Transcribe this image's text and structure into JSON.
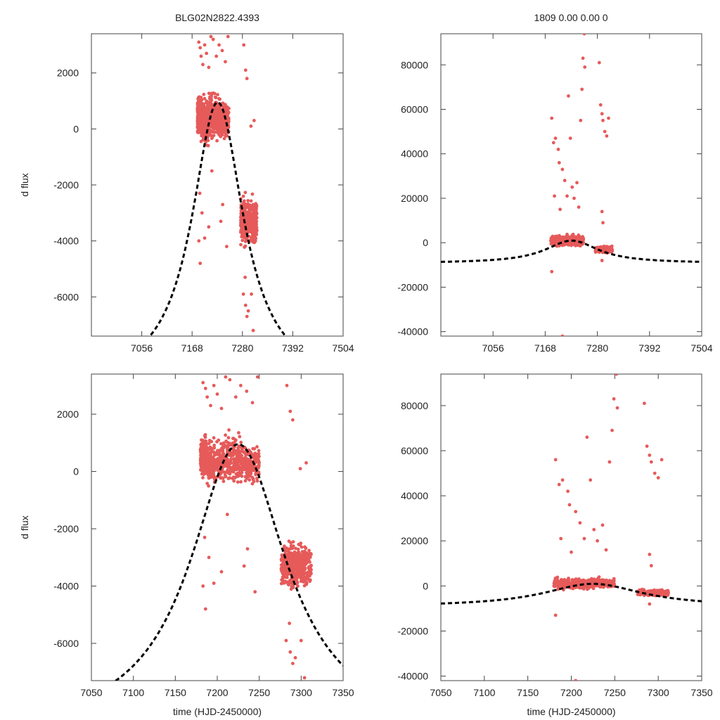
{
  "figure": {
    "title_left": "BLG02N2822.4393",
    "title_right": "1809  0.00  0.00  0",
    "colors": {
      "points": "#e65a5a",
      "model": "#000000",
      "frame": "#444444"
    }
  },
  "chart_data": [
    {
      "id": "top-left",
      "type": "scatter",
      "title": "BLG02N2822.4393",
      "xlabel": "",
      "ylabel": "d flux",
      "xlim": [
        6944,
        7504
      ],
      "ylim": [
        -7400,
        3400
      ],
      "xticks": [
        7056,
        7168,
        7280,
        7392,
        7504
      ],
      "yticks": [
        -6000,
        -4000,
        -2000,
        0,
        2000
      ],
      "series": [
        {
          "name": "observations",
          "clusters": [
            {
              "x": [
                7180,
                7188
              ],
              "y_center": 500,
              "y_spread": 700,
              "count": 260
            },
            {
              "x": [
                7188,
                7205
              ],
              "y_center": 300,
              "y_spread": 900,
              "count": 220
            },
            {
              "x": [
                7205,
                7230
              ],
              "y_center": 400,
              "y_spread": 900,
              "count": 240
            },
            {
              "x": [
                7230,
                7250
              ],
              "y_center": 300,
              "y_spread": 700,
              "count": 160
            },
            {
              "x": [
                7276,
                7312
              ],
              "y_center": -3300,
              "y_spread": 900,
              "count": 420
            }
          ],
          "outliers": [
            [
              7183,
              3100
            ],
            [
              7186,
              2900
            ],
            [
              7188,
              2600
            ],
            [
              7192,
              2300
            ],
            [
              7196,
              3000
            ],
            [
              7200,
              2700
            ],
            [
              7205,
              2200
            ],
            [
              7210,
              3300
            ],
            [
              7215,
              3200
            ],
            [
              7222,
              2600
            ],
            [
              7228,
              3000
            ],
            [
              7235,
              2800
            ],
            [
              7242,
              2400
            ],
            [
              7248,
              3300
            ],
            [
              7185,
              -2300
            ],
            [
              7190,
              -3000
            ],
            [
              7183,
              -4000
            ],
            [
              7186,
              -4800
            ],
            [
              7196,
              -3900
            ],
            [
              7205,
              -3500
            ],
            [
              7212,
              -1500
            ],
            [
              7232,
              -3300
            ],
            [
              7236,
              -2700
            ],
            [
              7245,
              -4200
            ],
            [
              7283,
              3000
            ],
            [
              7287,
              2100
            ],
            [
              7290,
              1800
            ],
            [
              7299,
              100
            ],
            [
              7306,
              300
            ],
            [
              7282,
              -5900
            ],
            [
              7287,
              -6300
            ],
            [
              7290,
              -6700
            ],
            [
              7293,
              -6500
            ],
            [
              7286,
              -5300
            ],
            [
              7300,
              -5900
            ],
            [
              7304,
              -7200
            ]
          ]
        },
        {
          "name": "model",
          "style": "dashed",
          "t0": 7225,
          "peak": 950,
          "baseline": -9200,
          "half_width": 70
        }
      ]
    },
    {
      "id": "top-right",
      "type": "scatter",
      "title": "1809  0.00  0.00  0",
      "xlabel": "",
      "ylabel": "",
      "xlim": [
        6944,
        7504
      ],
      "ylim": [
        -42000,
        94000
      ],
      "xticks": [
        7056,
        7168,
        7280,
        7392,
        7504
      ],
      "yticks": [
        -40000,
        -20000,
        0,
        20000,
        40000,
        60000,
        80000
      ],
      "series": [
        {
          "name": "observations",
          "clusters": [
            {
              "x": [
                7180,
                7250
              ],
              "y_center": 1000,
              "y_spread": 2500,
              "count": 420
            },
            {
              "x": [
                7276,
                7312
              ],
              "y_center": -3000,
              "y_spread": 1600,
              "count": 260
            }
          ],
          "outliers": [
            [
              7182,
              56000
            ],
            [
              7186,
              45000
            ],
            [
              7190,
              47000
            ],
            [
              7196,
              42000
            ],
            [
              7198,
              36000
            ],
            [
              7205,
              33000
            ],
            [
              7210,
              28000
            ],
            [
              7215,
              21000
            ],
            [
              7218,
              66000
            ],
            [
              7222,
              47000
            ],
            [
              7226,
              25000
            ],
            [
              7230,
              20000
            ],
            [
              7236,
              27000
            ],
            [
              7244,
              55000
            ],
            [
              7247,
              69000
            ],
            [
              7249,
              83000
            ],
            [
              7252,
              94000
            ],
            [
              7253,
              79000
            ],
            [
              7284,
              81000
            ],
            [
              7287,
              62000
            ],
            [
              7290,
              58000
            ],
            [
              7292,
              55000
            ],
            [
              7296,
              50000
            ],
            [
              7300,
              48000
            ],
            [
              7304,
              56000
            ],
            [
              7188,
              21000
            ],
            [
              7200,
              15000
            ],
            [
              7240,
              16000
            ],
            [
              7290,
              14000
            ],
            [
              7292,
              9000
            ],
            [
              7182,
              -13000
            ],
            [
              7205,
              -42000
            ],
            [
              7290,
              -8000
            ]
          ]
        },
        {
          "name": "model",
          "style": "dashed",
          "t0": 7225,
          "peak": 950,
          "baseline": -9200,
          "half_width": 70
        }
      ]
    },
    {
      "id": "bottom-left",
      "type": "scatter",
      "title": "",
      "xlabel": "time (HJD-2450000)",
      "ylabel": "d flux",
      "xlim": [
        7050,
        7350
      ],
      "ylim": [
        -7300,
        3400
      ],
      "xticks": [
        7050,
        7100,
        7150,
        7200,
        7250,
        7300,
        7350
      ],
      "yticks": [
        -6000,
        -4000,
        -2000,
        0,
        2000
      ],
      "series": [
        {
          "name": "observations",
          "clusters": [
            {
              "x": [
                7180,
                7188
              ],
              "y_center": 500,
              "y_spread": 700,
              "count": 260
            },
            {
              "x": [
                7188,
                7205
              ],
              "y_center": 300,
              "y_spread": 900,
              "count": 220
            },
            {
              "x": [
                7205,
                7230
              ],
              "y_center": 400,
              "y_spread": 900,
              "count": 240
            },
            {
              "x": [
                7230,
                7250
              ],
              "y_center": 300,
              "y_spread": 700,
              "count": 160
            },
            {
              "x": [
                7276,
                7312
              ],
              "y_center": -3300,
              "y_spread": 900,
              "count": 420
            }
          ],
          "outliers": [
            [
              7183,
              3100
            ],
            [
              7186,
              2900
            ],
            [
              7188,
              2600
            ],
            [
              7192,
              2300
            ],
            [
              7196,
              3000
            ],
            [
              7200,
              2700
            ],
            [
              7205,
              2200
            ],
            [
              7210,
              3300
            ],
            [
              7215,
              3200
            ],
            [
              7222,
              2600
            ],
            [
              7228,
              3000
            ],
            [
              7235,
              2800
            ],
            [
              7242,
              2400
            ],
            [
              7248,
              3300
            ],
            [
              7185,
              -2300
            ],
            [
              7190,
              -3000
            ],
            [
              7183,
              -4000
            ],
            [
              7186,
              -4800
            ],
            [
              7196,
              -3900
            ],
            [
              7205,
              -3500
            ],
            [
              7212,
              -1500
            ],
            [
              7232,
              -3300
            ],
            [
              7236,
              -2700
            ],
            [
              7245,
              -4200
            ],
            [
              7283,
              3000
            ],
            [
              7287,
              2100
            ],
            [
              7290,
              1800
            ],
            [
              7299,
              100
            ],
            [
              7306,
              300
            ],
            [
              7282,
              -5900
            ],
            [
              7287,
              -6300
            ],
            [
              7290,
              -6700
            ],
            [
              7293,
              -6500
            ],
            [
              7286,
              -5300
            ],
            [
              7300,
              -5900
            ],
            [
              7304,
              -7200
            ]
          ]
        },
        {
          "name": "model",
          "style": "dashed",
          "t0": 7225,
          "peak": 950,
          "baseline": -9200,
          "half_width": 70
        }
      ]
    },
    {
      "id": "bottom-right",
      "type": "scatter",
      "title": "",
      "xlabel": "time (HJD-2450000)",
      "ylabel": "",
      "xlim": [
        7050,
        7350
      ],
      "ylim": [
        -42000,
        94000
      ],
      "xticks": [
        7050,
        7100,
        7150,
        7200,
        7250,
        7300,
        7350
      ],
      "yticks": [
        -40000,
        -20000,
        0,
        20000,
        40000,
        60000,
        80000
      ],
      "series": [
        {
          "name": "observations",
          "clusters": [
            {
              "x": [
                7180,
                7250
              ],
              "y_center": 1000,
              "y_spread": 2500,
              "count": 420
            },
            {
              "x": [
                7276,
                7312
              ],
              "y_center": -3000,
              "y_spread": 1600,
              "count": 260
            }
          ],
          "outliers": [
            [
              7182,
              56000
            ],
            [
              7186,
              45000
            ],
            [
              7190,
              47000
            ],
            [
              7196,
              42000
            ],
            [
              7198,
              36000
            ],
            [
              7205,
              33000
            ],
            [
              7210,
              28000
            ],
            [
              7215,
              21000
            ],
            [
              7218,
              66000
            ],
            [
              7222,
              47000
            ],
            [
              7226,
              25000
            ],
            [
              7230,
              20000
            ],
            [
              7236,
              27000
            ],
            [
              7244,
              55000
            ],
            [
              7247,
              69000
            ],
            [
              7249,
              83000
            ],
            [
              7252,
              94000
            ],
            [
              7253,
              79000
            ],
            [
              7284,
              81000
            ],
            [
              7287,
              62000
            ],
            [
              7290,
              58000
            ],
            [
              7292,
              55000
            ],
            [
              7296,
              50000
            ],
            [
              7300,
              48000
            ],
            [
              7304,
              56000
            ],
            [
              7188,
              21000
            ],
            [
              7200,
              15000
            ],
            [
              7240,
              16000
            ],
            [
              7290,
              14000
            ],
            [
              7292,
              9000
            ],
            [
              7182,
              -13000
            ],
            [
              7205,
              -42000
            ],
            [
              7290,
              -8000
            ]
          ]
        },
        {
          "name": "model",
          "style": "dashed",
          "t0": 7225,
          "peak": 950,
          "baseline": -9200,
          "half_width": 70
        }
      ]
    }
  ]
}
